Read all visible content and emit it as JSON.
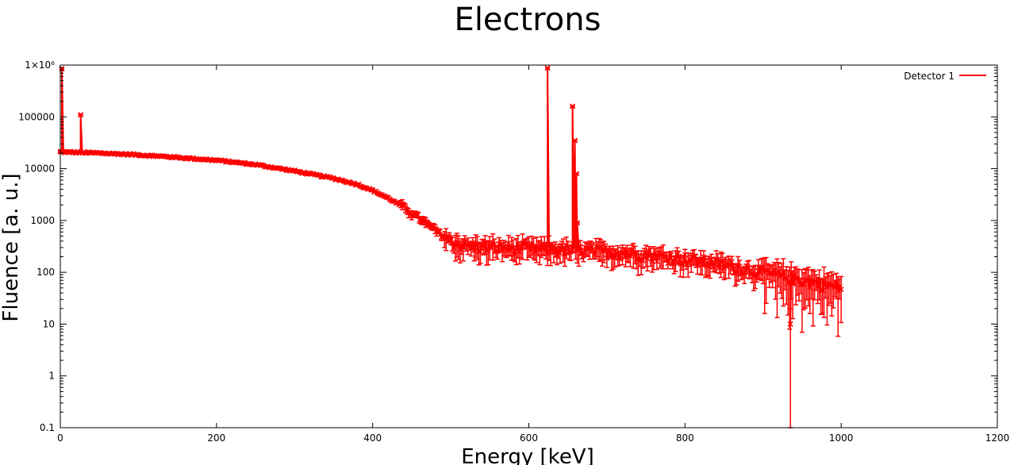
{
  "chart_data": {
    "type": "scatter",
    "title": "Electrons",
    "xlabel": "Energy [keV]",
    "ylabel": "Fluence [a. u.]",
    "xlim": [
      0,
      1200
    ],
    "ylim": [
      0.1,
      1000000
    ],
    "yscale": "log",
    "x_ticks": [
      0,
      200,
      400,
      600,
      800,
      1000,
      1200
    ],
    "x_tick_labels": [
      "0",
      "200",
      "400",
      "600",
      "800",
      "1000",
      "1200"
    ],
    "y_ticks": [
      0.1,
      1,
      10,
      100,
      1000,
      10000,
      100000,
      1000000
    ],
    "y_tick_labels": [
      "0.1",
      "1",
      "10",
      "100",
      "1000",
      "10000",
      "100000",
      "1×10⁶"
    ],
    "grid": false,
    "legend_position": "top-right",
    "error_bars": true,
    "series": [
      {
        "name": "Detector 1",
        "color": "#ff0000",
        "marker": "x",
        "baseline_x": [
          0,
          50,
          100,
          150,
          200,
          250,
          300,
          350,
          380,
          400,
          420,
          440,
          460,
          480,
          500,
          520,
          560,
          600,
          650,
          700,
          750,
          800,
          850,
          900,
          950,
          1000
        ],
        "baseline_y": [
          21000,
          20000,
          18500,
          16500,
          14500,
          12000,
          9000,
          6500,
          5000,
          3800,
          2700,
          1800,
          1100,
          650,
          400,
          320,
          300,
          290,
          270,
          250,
          220,
          180,
          140,
          100,
          70,
          50
        ],
        "peaks": [
          {
            "x": 2,
            "y": 850000
          },
          {
            "x": 26,
            "y": 110000
          },
          {
            "x": 624,
            "y": 880000
          },
          {
            "x": 656,
            "y": 160000
          },
          {
            "x": 659,
            "y": 35000
          },
          {
            "x": 661,
            "y": 8000
          },
          {
            "x": 662,
            "y": 900
          }
        ],
        "dips": [
          {
            "x": 935,
            "y": 10
          }
        ]
      }
    ]
  }
}
